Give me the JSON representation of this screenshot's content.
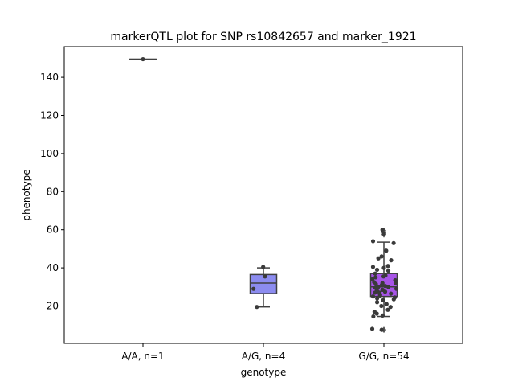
{
  "chart_data": {
    "type": "box",
    "title": "markerQTL plot for SNP rs10842657 and marker_1921",
    "xlabel": "genotype",
    "ylabel": "phenotype",
    "ylim": [
      0,
      156
    ],
    "yticks": [
      20,
      40,
      60,
      80,
      100,
      120,
      140
    ],
    "grid": false,
    "categories": [
      "A/A, n=1",
      "A/G, n=4",
      "G/G, n=54"
    ],
    "colors": [
      "#6b6bf5",
      "#8c8cf0",
      "#a855e8"
    ],
    "boxes": [
      {
        "q1": 149.5,
        "median": 149.5,
        "q3": 149.5,
        "whisker_low": 149.5,
        "whisker_high": 149.5,
        "outliers": []
      },
      {
        "q1": 26.5,
        "median": 32,
        "q3": 36.5,
        "whisker_low": 19.5,
        "whisker_high": 40,
        "outliers": []
      },
      {
        "q1": 25,
        "median": 30,
        "q3": 37,
        "whisker_low": 14.5,
        "whisker_high": 53.5,
        "outliers": [
          7.5,
          57.5,
          58.5,
          59.5
        ]
      }
    ],
    "points": [
      [
        149.5
      ],
      [
        40.5,
        35.5,
        29,
        19.5
      ],
      [
        60,
        58,
        54,
        53,
        49,
        46,
        45,
        44,
        41,
        40.5,
        40,
        39,
        38.5,
        37,
        36,
        35.5,
        35,
        34,
        33.5,
        33,
        32.5,
        32,
        32,
        31.5,
        31,
        30.5,
        30,
        30,
        29.5,
        29,
        28.5,
        28,
        27.5,
        27,
        27,
        26.5,
        26,
        25.5,
        25,
        24.5,
        24,
        23.5,
        23,
        22,
        21,
        20,
        19.5,
        18,
        17,
        16,
        15,
        14.5,
        8,
        7.5
      ]
    ]
  }
}
